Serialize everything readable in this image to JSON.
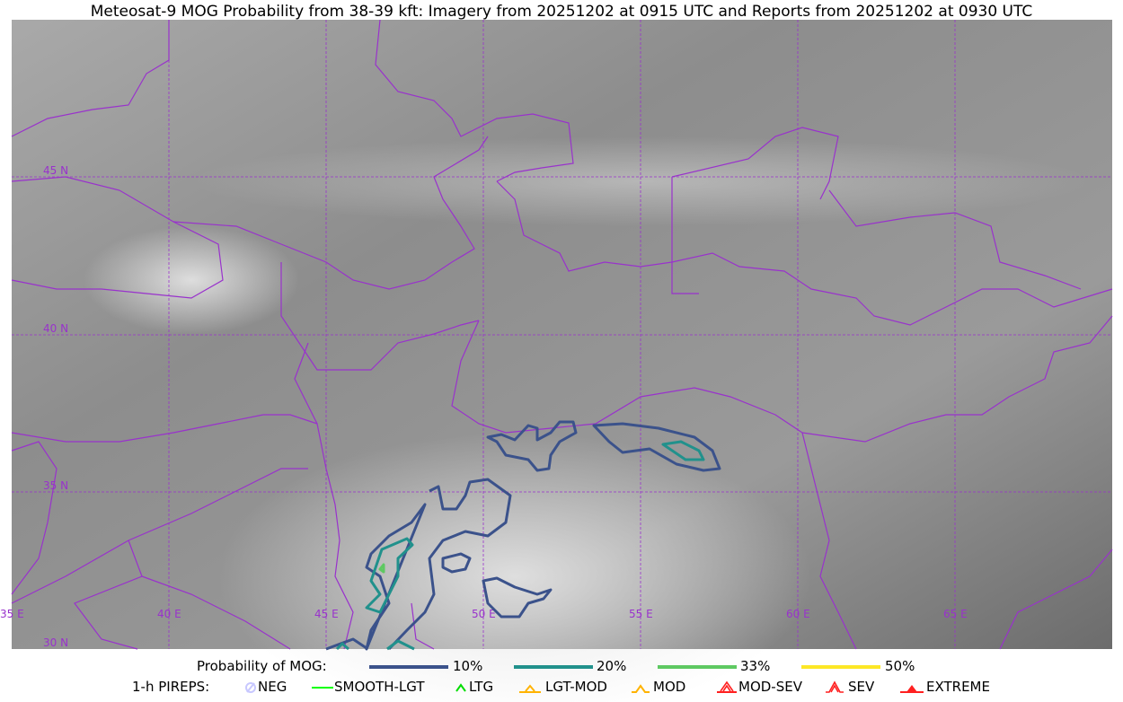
{
  "title": "Meteosat-9 MOG Probability from 38-39 kft: Imagery from 20251202 at 0915 UTC and Reports from 20251202 at 0930 UTC",
  "map": {
    "lat_labels": [
      "45 N",
      "40 N",
      "35 N",
      "30 N"
    ],
    "lon_labels": [
      "35 E",
      "40 E",
      "45 E",
      "50 E",
      "55 E",
      "60 E",
      "65 E"
    ],
    "grid_color": "#9932cc",
    "border_color": "#9932cc"
  },
  "legend": {
    "probability": {
      "label": "Probability of MOG:",
      "items": [
        {
          "label": "10%",
          "color": "#3b528b"
        },
        {
          "label": "20%",
          "color": "#21918c"
        },
        {
          "label": "33%",
          "color": "#5ec962"
        },
        {
          "label": "50%",
          "color": "#fde725"
        }
      ]
    },
    "pireps": {
      "label": "1-h PIREPS:",
      "items": [
        {
          "label": "NEG",
          "icon": "neg-icon",
          "color": "#c8c8ff"
        },
        {
          "label": "SMOOTH-LGT",
          "icon": "smooth-lgt-icon",
          "color": "#00ff00"
        },
        {
          "label": "LTG",
          "icon": "ltg-icon",
          "color": "#00cc00"
        },
        {
          "label": "LGT-MOD",
          "icon": "lgt-mod-icon",
          "color": "#ffb300"
        },
        {
          "label": "MOD",
          "icon": "mod-icon",
          "color": "#ffb300"
        },
        {
          "label": "MOD-SEV",
          "icon": "mod-sev-icon",
          "color": "#ff2020"
        },
        {
          "label": "SEV",
          "icon": "sev-icon",
          "color": "#ff2020"
        },
        {
          "label": "EXTREME",
          "icon": "extreme-icon",
          "color": "#ff2020"
        }
      ]
    }
  }
}
